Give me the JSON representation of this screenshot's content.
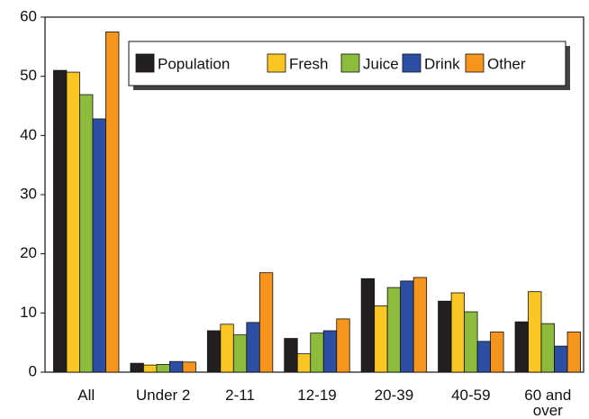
{
  "chart_data": {
    "type": "bar",
    "categories": [
      "All",
      "Under 2",
      "2-11",
      "12-19",
      "20-39",
      "40-59",
      "60 and over"
    ],
    "series": [
      {
        "name": "Population",
        "color": "#231f20",
        "values": [
          51,
          1.5,
          7,
          5.7,
          15.8,
          12,
          8.5
        ]
      },
      {
        "name": "Fresh",
        "color": "#f9c623",
        "values": [
          50.7,
          1.2,
          8.1,
          3.1,
          11.2,
          13.4,
          13.6
        ]
      },
      {
        "name": "Juice",
        "color": "#8dbb3c",
        "values": [
          46.9,
          1.3,
          6.3,
          6.6,
          14.3,
          10.2,
          8.2
        ]
      },
      {
        "name": "Drink",
        "color": "#2d4fa3",
        "values": [
          42.8,
          1.8,
          8.4,
          7,
          15.4,
          5.2,
          4.4
        ]
      },
      {
        "name": "Other",
        "color": "#f7941d",
        "values": [
          57.5,
          1.7,
          16.8,
          9,
          16,
          6.8,
          6.8
        ]
      }
    ],
    "ylim": [
      0,
      60
    ],
    "yticks": [
      0,
      10,
      20,
      30,
      40,
      50,
      60
    ],
    "legend": "top-right"
  }
}
